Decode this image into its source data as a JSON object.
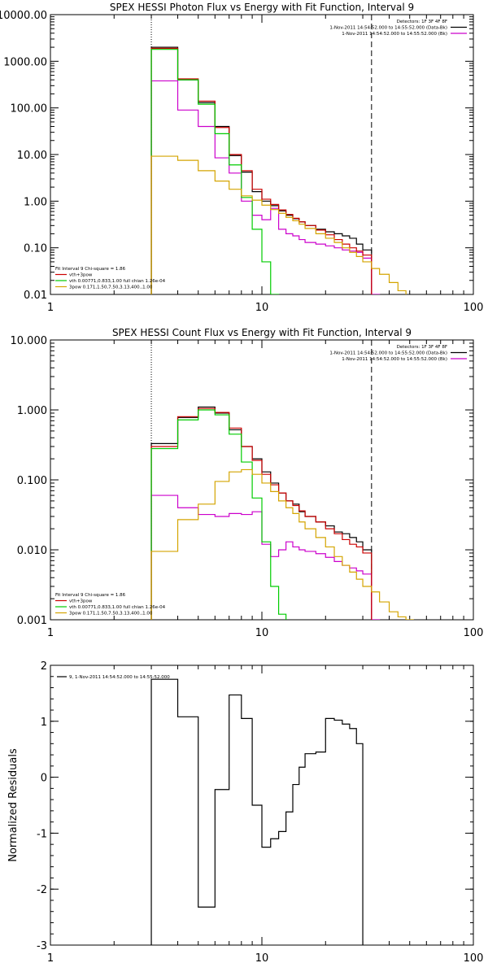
{
  "chart_data": [
    {
      "type": "line",
      "title": "SPEX HESSI Photon Flux vs Energy with Fit Function, Interval 9",
      "xscale": "log",
      "yscale": "log",
      "xlim": [
        1,
        100
      ],
      "ylim": [
        0.01,
        10000
      ],
      "xticks": [
        {
          "v": 1,
          "label": "1"
        },
        {
          "v": 10,
          "label": "10"
        },
        {
          "v": 100,
          "label": "100"
        }
      ],
      "yticks": [
        {
          "v": 0.01,
          "label": "0.01"
        },
        {
          "v": 0.1,
          "label": "0.10"
        },
        {
          "v": 1,
          "label": "1.00"
        },
        {
          "v": 10,
          "label": "10.00"
        },
        {
          "v": 100,
          "label": "100.00"
        },
        {
          "v": 1000,
          "label": "1000.00"
        },
        {
          "v": 10000,
          "label": "10000.00"
        }
      ],
      "vlines": [
        {
          "x": 3,
          "style": "dotted"
        },
        {
          "x": 33,
          "style": "dashed"
        }
      ],
      "header_lines": [
        "Detectors: 1F 3F 4F 8F",
        "1-Nov-2011 14:54:52.000 to 14:55:52.000 (Data-Bk)",
        "1-Nov-2011 14:54:52.000 to 14:55:52.000 (Bk)"
      ],
      "fit_lines": [
        "Fit Interval 9   Chi-square = 1.86",
        "vth+3pow",
        "vth 0.00771,0.833,1.00  full chian 1.26e-04",
        "3pow 0.171,1.50,7.50,3.13,400.,1.00"
      ],
      "edges": [
        3,
        4,
        5,
        6,
        7,
        8,
        9,
        10,
        11,
        12,
        13,
        14,
        15,
        16,
        18,
        20,
        22,
        24,
        26,
        28,
        30,
        33,
        36,
        40,
        44,
        48,
        52
      ],
      "series": [
        {
          "name": "Data-Bk",
          "color": "#000000",
          "values": [
            2000,
            400,
            130,
            40,
            9.5,
            4.2,
            1.6,
            1.0,
            0.8,
            0.62,
            0.5,
            0.42,
            0.36,
            0.3,
            0.25,
            0.22,
            0.2,
            0.18,
            0.16,
            0.12,
            0.09,
            null,
            null,
            null,
            null,
            null
          ]
        },
        {
          "name": "Bk",
          "color": "#cc00cc",
          "values": [
            380,
            90,
            40,
            8.5,
            4.0,
            1.0,
            0.5,
            0.4,
            0.7,
            0.25,
            0.2,
            0.18,
            0.15,
            0.13,
            0.12,
            0.11,
            0.1,
            0.09,
            0.085,
            0.08,
            0.06,
            0.01,
            null,
            null,
            null,
            null
          ]
        },
        {
          "name": "vth+3pow",
          "color": "#cc0000",
          "values": [
            1900,
            420,
            140,
            38,
            10,
            4.5,
            1.8,
            1.1,
            0.85,
            0.65,
            0.52,
            0.43,
            0.36,
            0.3,
            0.24,
            0.19,
            0.15,
            0.12,
            0.1,
            0.085,
            0.07,
            null,
            null,
            null,
            null,
            null
          ]
        },
        {
          "name": "vth",
          "color": "#00cc00",
          "values": [
            1800,
            400,
            120,
            28,
            6,
            1.2,
            0.25,
            0.05,
            0.01,
            null,
            null,
            null,
            null,
            null,
            null,
            null,
            null,
            null,
            null,
            null,
            null,
            null,
            null,
            null,
            null,
            null
          ]
        },
        {
          "name": "3pow",
          "color": "#d4a400",
          "values": [
            9.2,
            7.5,
            4.5,
            2.7,
            1.8,
            1.3,
            1.05,
            0.82,
            0.66,
            0.55,
            0.45,
            0.38,
            0.32,
            0.26,
            0.2,
            0.16,
            0.13,
            0.1,
            0.08,
            0.065,
            0.05,
            0.036,
            0.027,
            0.018,
            0.012,
            0.009
          ]
        }
      ]
    },
    {
      "type": "line",
      "title": "SPEX HESSI Count Flux vs Energy with Fit Function, Interval 9",
      "xscale": "log",
      "yscale": "log",
      "xlim": [
        1,
        100
      ],
      "ylim": [
        0.001,
        10
      ],
      "xticks": [
        {
          "v": 1,
          "label": "1"
        },
        {
          "v": 10,
          "label": "10"
        },
        {
          "v": 100,
          "label": "100"
        }
      ],
      "yticks": [
        {
          "v": 0.001,
          "label": "0.001"
        },
        {
          "v": 0.01,
          "label": "0.010"
        },
        {
          "v": 0.1,
          "label": "0.100"
        },
        {
          "v": 1,
          "label": "1.000"
        },
        {
          "v": 10,
          "label": "10.000"
        }
      ],
      "vlines": [
        {
          "x": 3,
          "style": "dotted"
        },
        {
          "x": 33,
          "style": "dashed"
        }
      ],
      "header_lines": [
        "Detectors: 1F 3F 4F 8F",
        "1-Nov-2011 14:54:52.000 to 14:55:52.000 (Data-Bk)",
        "1-Nov-2011 14:54:52.000 to 14:55:52.000 (Bk)"
      ],
      "fit_lines": [
        "Fit Interval 9   Chi-square = 1.86",
        "vth+3pow",
        "vth 0.00771,0.833,1.00  full chian 1.26e-04",
        "3pow 0.171,1.50,7.50,3.13,400.,1.00"
      ],
      "edges": [
        3,
        4,
        5,
        6,
        7,
        8,
        9,
        10,
        11,
        12,
        13,
        14,
        15,
        16,
        18,
        20,
        22,
        24,
        26,
        28,
        30,
        33,
        36,
        40,
        44,
        48,
        52
      ],
      "series": [
        {
          "name": "Data-Bk",
          "color": "#000000",
          "values": [
            0.33,
            0.78,
            1.1,
            0.9,
            0.52,
            0.3,
            0.2,
            0.13,
            0.09,
            0.065,
            0.05,
            0.045,
            0.035,
            0.03,
            0.025,
            0.022,
            0.018,
            0.017,
            0.015,
            0.013,
            0.01,
            null,
            null,
            null,
            null,
            null
          ]
        },
        {
          "name": "Bk",
          "color": "#cc00cc",
          "values": [
            0.06,
            0.04,
            0.032,
            0.03,
            0.033,
            0.032,
            0.035,
            0.012,
            0.008,
            0.01,
            0.013,
            0.011,
            0.01,
            0.0095,
            0.0088,
            0.0078,
            0.0068,
            0.006,
            0.0055,
            0.005,
            0.0045,
            0.001,
            null,
            null,
            null,
            null
          ]
        },
        {
          "name": "vth+3pow",
          "color": "#cc0000",
          "values": [
            0.3,
            0.8,
            1.05,
            0.92,
            0.55,
            0.3,
            0.19,
            0.12,
            0.085,
            0.065,
            0.05,
            0.043,
            0.036,
            0.03,
            0.025,
            0.02,
            0.017,
            0.014,
            0.012,
            0.011,
            0.009,
            null,
            null,
            null,
            null,
            null
          ]
        },
        {
          "name": "vth",
          "color": "#00cc00",
          "values": [
            0.28,
            0.72,
            1.0,
            0.85,
            0.45,
            0.18,
            0.055,
            0.013,
            0.003,
            0.0012,
            null,
            null,
            null,
            null,
            null,
            null,
            null,
            null,
            null,
            null,
            null,
            null,
            null,
            null,
            null,
            null
          ]
        },
        {
          "name": "3pow",
          "color": "#d4a400",
          "values": [
            0.0095,
            0.027,
            0.045,
            0.095,
            0.13,
            0.14,
            0.12,
            0.09,
            0.068,
            0.05,
            0.04,
            0.033,
            0.025,
            0.02,
            0.015,
            0.011,
            0.008,
            0.006,
            0.0048,
            0.0038,
            0.003,
            0.0025,
            0.0018,
            0.0013,
            0.0011,
            0.001
          ]
        }
      ]
    },
    {
      "type": "line",
      "title": "",
      "xscale": "log",
      "yscale": "linear",
      "xlim": [
        1,
        100
      ],
      "ylim": [
        -3,
        2
      ],
      "ylabel": "Normalized Residuals",
      "xticks": [
        {
          "v": 1,
          "label": "1"
        },
        {
          "v": 10,
          "label": "10"
        },
        {
          "v": 100,
          "label": "100"
        }
      ],
      "yticks": [
        {
          "v": -3,
          "label": "-3"
        },
        {
          "v": -2,
          "label": "-2"
        },
        {
          "v": -1,
          "label": "-1"
        },
        {
          "v": 0,
          "label": "0"
        },
        {
          "v": 1,
          "label": "1"
        },
        {
          "v": 2,
          "label": "2"
        }
      ],
      "legend_lines": [
        "9, 1-Nov-2011 14:54:52.000 to 14:55:52.000"
      ],
      "edges": [
        3,
        4,
        5,
        6,
        7,
        8,
        9,
        10,
        11,
        12,
        13,
        14,
        15,
        16,
        18,
        20,
        22,
        24,
        26,
        28,
        30,
        33
      ],
      "series": [
        {
          "name": "residuals",
          "color": "#000000",
          "values": [
            1.75,
            1.08,
            -2.32,
            -0.22,
            1.47,
            1.05,
            -0.5,
            -1.25,
            -1.1,
            -0.97,
            -0.62,
            -0.13,
            0.18,
            0.42,
            0.45,
            1.05,
            1.02,
            0.95,
            0.87,
            0.6
          ]
        }
      ]
    }
  ]
}
